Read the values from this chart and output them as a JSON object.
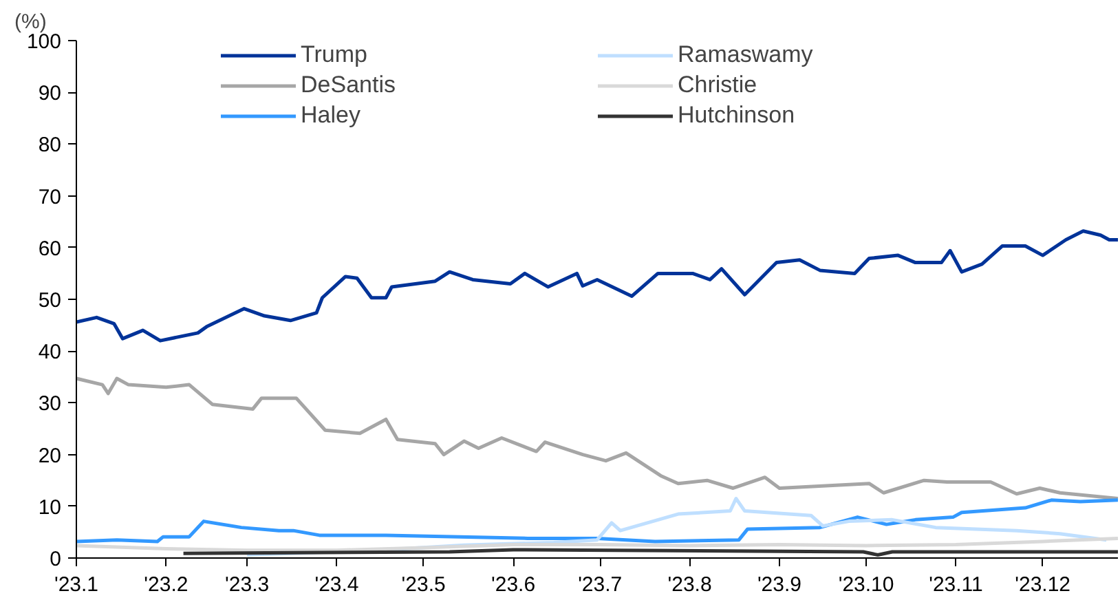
{
  "chart_data": {
    "type": "line",
    "ylabel": "(%)",
    "xlim": [
      "2023-01-01",
      "2023-12-27"
    ],
    "ylim": [
      0,
      100
    ],
    "yticks": [
      0,
      10,
      20,
      30,
      40,
      50,
      60,
      70,
      80,
      90,
      100
    ],
    "xticks": [
      {
        "value": "2023-01-01",
        "label": "'23.1"
      },
      {
        "value": "2023-02-01",
        "label": "'23.2"
      },
      {
        "value": "2023-03-01",
        "label": "'23.3"
      },
      {
        "value": "2023-04-01",
        "label": "'23.4"
      },
      {
        "value": "2023-05-01",
        "label": "'23.5"
      },
      {
        "value": "2023-06-01",
        "label": "'23.6"
      },
      {
        "value": "2023-07-01",
        "label": "'23.7"
      },
      {
        "value": "2023-08-01",
        "label": "'23.8"
      },
      {
        "value": "2023-09-01",
        "label": "'23.9"
      },
      {
        "value": "2023-10-01",
        "label": "'23.10"
      },
      {
        "value": "2023-11-01",
        "label": "'23.11"
      },
      {
        "value": "2023-12-01",
        "label": "'23.12"
      }
    ],
    "grid": false,
    "legend": "top",
    "marker": "none",
    "line_style": "solid",
    "series": [
      {
        "name": "Trump",
        "color": "#003399",
        "x": [
          "2023-01-01",
          "2023-01-08",
          "2023-01-14",
          "2023-01-17",
          "2023-01-24",
          "2023-01-30",
          "2023-02-12",
          "2023-02-15",
          "2023-02-28",
          "2023-03-07",
          "2023-03-16",
          "2023-03-25",
          "2023-03-27",
          "2023-04-04",
          "2023-04-08",
          "2023-04-13",
          "2023-04-18",
          "2023-04-20",
          "2023-05-05",
          "2023-05-10",
          "2023-05-18",
          "2023-05-31",
          "2023-06-05",
          "2023-06-13",
          "2023-06-23",
          "2023-06-25",
          "2023-06-30",
          "2023-07-12",
          "2023-07-21",
          "2023-08-02",
          "2023-08-08",
          "2023-08-12",
          "2023-08-20",
          "2023-08-31",
          "2023-09-08",
          "2023-09-15",
          "2023-09-27",
          "2023-10-02",
          "2023-10-12",
          "2023-10-18",
          "2023-10-27",
          "2023-10-30",
          "2023-11-03",
          "2023-11-10",
          "2023-11-17",
          "2023-11-25",
          "2023-12-01",
          "2023-12-09",
          "2023-12-15",
          "2023-12-21",
          "2023-12-24",
          "2023-12-27"
        ],
        "values": [
          45.6,
          46.5,
          45.3,
          42.4,
          44,
          42,
          43.5,
          44.7,
          48.2,
          46.8,
          45.9,
          47.4,
          50.3,
          54.4,
          54.1,
          50.3,
          50.3,
          52.4,
          53.5,
          55.3,
          53.8,
          53,
          55,
          52.4,
          55,
          52.6,
          53.8,
          50.6,
          55,
          55,
          53.8,
          55.9,
          50.9,
          57.1,
          57.6,
          55.6,
          55,
          57.9,
          58.5,
          57.1,
          57.1,
          59.4,
          55.3,
          56.8,
          60.3,
          60.3,
          58.5,
          61.5,
          63.2,
          62.4,
          61.5,
          61.5
        ]
      },
      {
        "name": "DeSantis",
        "color": "#a6a6a6",
        "x": [
          "2023-01-01",
          "2023-01-10",
          "2023-01-12",
          "2023-01-15",
          "2023-01-19",
          "2023-02-01",
          "2023-02-09",
          "2023-02-17",
          "2023-03-03",
          "2023-03-06",
          "2023-03-18",
          "2023-03-28",
          "2023-04-09",
          "2023-04-18",
          "2023-04-22",
          "2023-05-05",
          "2023-05-08",
          "2023-05-15",
          "2023-05-20",
          "2023-05-28",
          "2023-06-09",
          "2023-06-12",
          "2023-06-25",
          "2023-07-03",
          "2023-07-10",
          "2023-07-22",
          "2023-07-28",
          "2023-08-07",
          "2023-08-16",
          "2023-08-27",
          "2023-09-01",
          "2023-10-02",
          "2023-10-07",
          "2023-10-21",
          "2023-10-29",
          "2023-11-13",
          "2023-11-22",
          "2023-11-30",
          "2023-12-07",
          "2023-12-27"
        ],
        "values": [
          34.7,
          33.5,
          31.8,
          34.7,
          33.5,
          33,
          33.5,
          29.7,
          28.8,
          30.9,
          30.9,
          24.7,
          24.1,
          26.8,
          22.9,
          22.1,
          20,
          22.6,
          21.2,
          23.2,
          20.6,
          22.4,
          20,
          18.8,
          20.3,
          15.9,
          14.4,
          15,
          13.5,
          15.6,
          13.5,
          14.4,
          12.6,
          15,
          14.7,
          14.7,
          12.4,
          13.5,
          12.6,
          11.5
        ]
      },
      {
        "name": "Haley",
        "color": "#3399ff",
        "x": [
          "2023-01-01",
          "2023-01-15",
          "2023-01-29",
          "2023-01-31",
          "2023-02-09",
          "2023-02-14",
          "2023-02-27",
          "2023-03-12",
          "2023-03-17",
          "2023-03-26",
          "2023-04-18",
          "2023-06-06",
          "2023-06-30",
          "2023-07-20",
          "2023-08-18",
          "2023-08-21",
          "2023-09-15",
          "2023-09-28",
          "2023-10-08",
          "2023-10-18",
          "2023-10-31",
          "2023-11-03",
          "2023-11-25",
          "2023-12-04",
          "2023-12-14",
          "2023-12-27"
        ],
        "values": [
          3.2,
          3.5,
          3.2,
          4.1,
          4.1,
          7.1,
          5.9,
          5.3,
          5.3,
          4.4,
          4.4,
          3.8,
          3.8,
          3.2,
          3.5,
          5.6,
          5.9,
          7.9,
          6.5,
          7.4,
          7.9,
          8.8,
          9.7,
          11.2,
          10.9,
          11.2
        ]
      },
      {
        "name": "Ramaswamy",
        "color": "#bfdfff",
        "x": [
          "2023-03-01",
          "2023-04-15",
          "2023-05-15",
          "2023-06-15",
          "2023-06-30",
          "2023-07-05",
          "2023-07-08",
          "2023-07-28",
          "2023-08-15",
          "2023-08-17",
          "2023-08-20",
          "2023-09-12",
          "2023-09-16",
          "2023-09-25",
          "2023-10-10",
          "2023-10-25",
          "2023-11-22",
          "2023-12-07",
          "2023-12-23"
        ],
        "values": [
          0.6,
          1.5,
          2.5,
          3,
          3.5,
          6.8,
          5.3,
          8.5,
          9.1,
          11.5,
          9.1,
          8.2,
          6.2,
          7.1,
          7.4,
          5.9,
          5.3,
          4.7,
          3.5
        ]
      },
      {
        "name": "Christie",
        "color": "#d9d9d9",
        "x": [
          "2023-01-01",
          "2023-02-01",
          "2023-03-01",
          "2023-04-01",
          "2023-05-01",
          "2023-06-01",
          "2023-07-01",
          "2023-08-01",
          "2023-09-01",
          "2023-10-01",
          "2023-11-01",
          "2023-12-01",
          "2023-12-27"
        ],
        "values": [
          2.4,
          1.8,
          1.5,
          1.5,
          2,
          2.6,
          2.6,
          2.4,
          2.6,
          2.4,
          2.6,
          3.2,
          3.8
        ]
      },
      {
        "name": "Hutchinson",
        "color": "#333333",
        "x": [
          "2023-02-07",
          "2023-05-10",
          "2023-06-01",
          "2023-09-30",
          "2023-10-05",
          "2023-10-10",
          "2023-12-27"
        ],
        "values": [
          0.9,
          1.2,
          1.6,
          1.2,
          0.6,
          1.2,
          1.2
        ]
      }
    ]
  }
}
